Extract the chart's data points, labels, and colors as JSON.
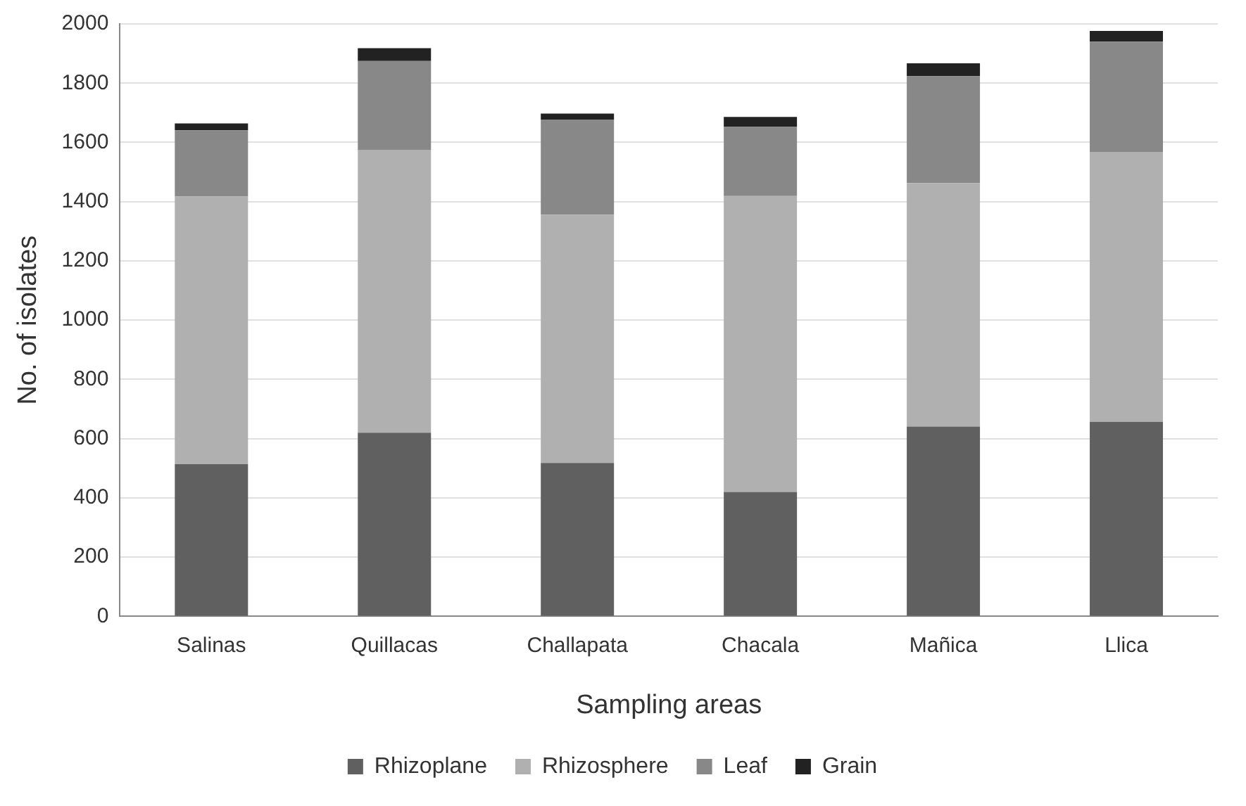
{
  "chart_data": {
    "type": "bar",
    "stacked": true,
    "xlabel": "Sampling areas",
    "ylabel": "No. of isolates",
    "categories": [
      "Salinas",
      "Quillacas",
      "Challapata",
      "Chacala",
      "Mañica",
      "Llica"
    ],
    "series": [
      {
        "name": "Rhizoplane",
        "color": "#606060",
        "values": [
          514,
          620,
          518,
          420,
          641,
          657
        ]
      },
      {
        "name": "Rhizosphere",
        "color": "#b0b0b0",
        "values": [
          903,
          955,
          838,
          999,
          822,
          911
        ]
      },
      {
        "name": "Leaf",
        "color": "#888888",
        "values": [
          224,
          300,
          320,
          233,
          361,
          372
        ]
      },
      {
        "name": "Grain",
        "color": "#222222",
        "values": [
          23,
          43,
          21,
          34,
          43,
          36
        ]
      }
    ],
    "ylim": [
      0,
      2000
    ],
    "yticks": [
      0,
      200,
      400,
      600,
      800,
      1000,
      1200,
      1400,
      1600,
      1800,
      2000
    ],
    "grid": "y",
    "legend": "bottom"
  }
}
